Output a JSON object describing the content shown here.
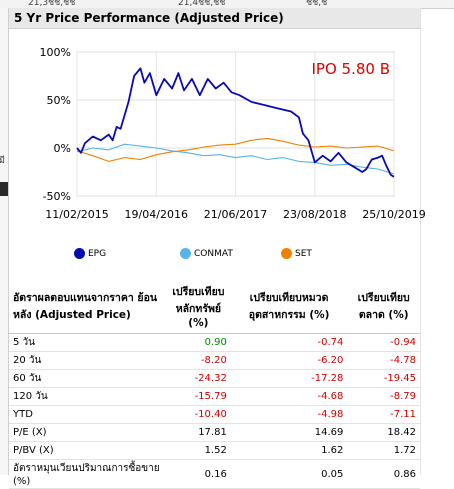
{
  "top_strip": {
    "c1": "21,3ชช,ชช",
    "c2": "21,4ชช,ชช",
    "c3": "ชช,ช"
  },
  "sidebar": {
    "partial_text": "มี"
  },
  "section_title": "5 Yr Price Performance (Adjusted Price)",
  "chart_data": {
    "type": "line",
    "title": "",
    "annotation": "IPO 5.80 B",
    "y_ticks": [
      "100%",
      "50%",
      "0%",
      "-50%"
    ],
    "ylim": [
      -50,
      100
    ],
    "x_ticks": [
      "11/02/2015",
      "19/04/2016",
      "21/06/2017",
      "23/08/2018",
      "25/10/2019"
    ],
    "x_tick_positions": [
      0,
      1.0,
      2.0,
      3.0,
      4.0
    ],
    "xlim": [
      0,
      4.0
    ],
    "grid": true,
    "legend_placement": "bottom",
    "series": [
      {
        "name": "EPG",
        "color": "#0a0ab4",
        "points": [
          [
            0.0,
            0
          ],
          [
            0.05,
            -5
          ],
          [
            0.1,
            5
          ],
          [
            0.2,
            12
          ],
          [
            0.3,
            8
          ],
          [
            0.4,
            14
          ],
          [
            0.45,
            8
          ],
          [
            0.5,
            22
          ],
          [
            0.55,
            20
          ],
          [
            0.65,
            48
          ],
          [
            0.72,
            75
          ],
          [
            0.8,
            83
          ],
          [
            0.85,
            68
          ],
          [
            0.92,
            78
          ],
          [
            1.0,
            55
          ],
          [
            1.1,
            72
          ],
          [
            1.2,
            62
          ],
          [
            1.28,
            78
          ],
          [
            1.35,
            60
          ],
          [
            1.45,
            72
          ],
          [
            1.55,
            55
          ],
          [
            1.65,
            72
          ],
          [
            1.75,
            62
          ],
          [
            1.85,
            68
          ],
          [
            1.95,
            58
          ],
          [
            2.05,
            55
          ],
          [
            2.2,
            48
          ],
          [
            2.35,
            45
          ],
          [
            2.5,
            42
          ],
          [
            2.6,
            40
          ],
          [
            2.7,
            38
          ],
          [
            2.8,
            32
          ],
          [
            2.85,
            15
          ],
          [
            2.92,
            8
          ],
          [
            3.0,
            -15
          ],
          [
            3.1,
            -8
          ],
          [
            3.2,
            -14
          ],
          [
            3.3,
            -5
          ],
          [
            3.4,
            -15
          ],
          [
            3.5,
            -20
          ],
          [
            3.6,
            -25
          ],
          [
            3.65,
            -22
          ],
          [
            3.72,
            -12
          ],
          [
            3.8,
            -10
          ],
          [
            3.85,
            -8
          ],
          [
            3.9,
            -18
          ],
          [
            3.96,
            -28
          ],
          [
            4.0,
            -30
          ]
        ]
      },
      {
        "name": "CONMAT",
        "color": "#56b4e9",
        "points": [
          [
            0.0,
            -4
          ],
          [
            0.2,
            0
          ],
          [
            0.4,
            -2
          ],
          [
            0.6,
            4
          ],
          [
            0.8,
            2
          ],
          [
            1.0,
            0
          ],
          [
            1.2,
            -3
          ],
          [
            1.4,
            -5
          ],
          [
            1.6,
            -8
          ],
          [
            1.8,
            -7
          ],
          [
            2.0,
            -10
          ],
          [
            2.2,
            -8
          ],
          [
            2.4,
            -12
          ],
          [
            2.6,
            -10
          ],
          [
            2.8,
            -14
          ],
          [
            3.0,
            -15
          ],
          [
            3.2,
            -18
          ],
          [
            3.4,
            -17
          ],
          [
            3.6,
            -20
          ],
          [
            3.8,
            -22
          ],
          [
            4.0,
            -27
          ]
        ]
      },
      {
        "name": "SET",
        "color": "#f08000",
        "points": [
          [
            0.0,
            -3
          ],
          [
            0.2,
            -8
          ],
          [
            0.4,
            -14
          ],
          [
            0.6,
            -10
          ],
          [
            0.8,
            -12
          ],
          [
            1.0,
            -7
          ],
          [
            1.2,
            -4
          ],
          [
            1.4,
            -2
          ],
          [
            1.6,
            1
          ],
          [
            1.8,
            3
          ],
          [
            2.0,
            4
          ],
          [
            2.2,
            8
          ],
          [
            2.4,
            10
          ],
          [
            2.6,
            7
          ],
          [
            2.8,
            3
          ],
          [
            3.0,
            1
          ],
          [
            3.2,
            2
          ],
          [
            3.4,
            0
          ],
          [
            3.6,
            1
          ],
          [
            3.8,
            2
          ],
          [
            4.0,
            -3
          ]
        ]
      }
    ]
  },
  "table": {
    "header": {
      "col0": "อัตราผลตอบแทนจากราคา ย้อนหลัง (Adjusted Price)",
      "col1": "เปรียบเทียบหลักทรัพย์ (%)",
      "col2": "เปรียบเทียบหมวดอุตสาหกรรม (%)",
      "col3": "เปรียบเทียบตลาด (%)"
    },
    "rows": [
      {
        "label": "5 วัน",
        "v1": "0.90",
        "v2": "-0.74",
        "v3": "-0.94",
        "c1": "pos",
        "c2": "neg",
        "c3": "neg"
      },
      {
        "label": "20 วัน",
        "v1": "-8.20",
        "v2": "-6.20",
        "v3": "-4.78",
        "c1": "neg",
        "c2": "neg",
        "c3": "neg"
      },
      {
        "label": "60 วัน",
        "v1": "-24.32",
        "v2": "-17.28",
        "v3": "-19.45",
        "c1": "neg",
        "c2": "neg",
        "c3": "neg"
      },
      {
        "label": "120 วัน",
        "v1": "-15.79",
        "v2": "-4.68",
        "v3": "-8.79",
        "c1": "neg",
        "c2": "neg",
        "c3": "neg"
      },
      {
        "label": "YTD",
        "v1": "-10.40",
        "v2": "-4.98",
        "v3": "-7.11",
        "c1": "neg",
        "c2": "neg",
        "c3": "neg"
      },
      {
        "label": "P/E (X)",
        "v1": "17.81",
        "v2": "14.69",
        "v3": "18.42",
        "c1": "neu",
        "c2": "neu",
        "c3": "neu"
      },
      {
        "label": "P/BV (X)",
        "v1": "1.52",
        "v2": "1.62",
        "v3": "1.72",
        "c1": "neu",
        "c2": "neu",
        "c3": "neu"
      },
      {
        "label": "อัตราหมุนเวียนปริมาณการซื้อขาย (%)",
        "v1": "0.16",
        "v2": "0.05",
        "v3": "0.86",
        "c1": "neu",
        "c2": "neu",
        "c3": "neu"
      }
    ]
  }
}
